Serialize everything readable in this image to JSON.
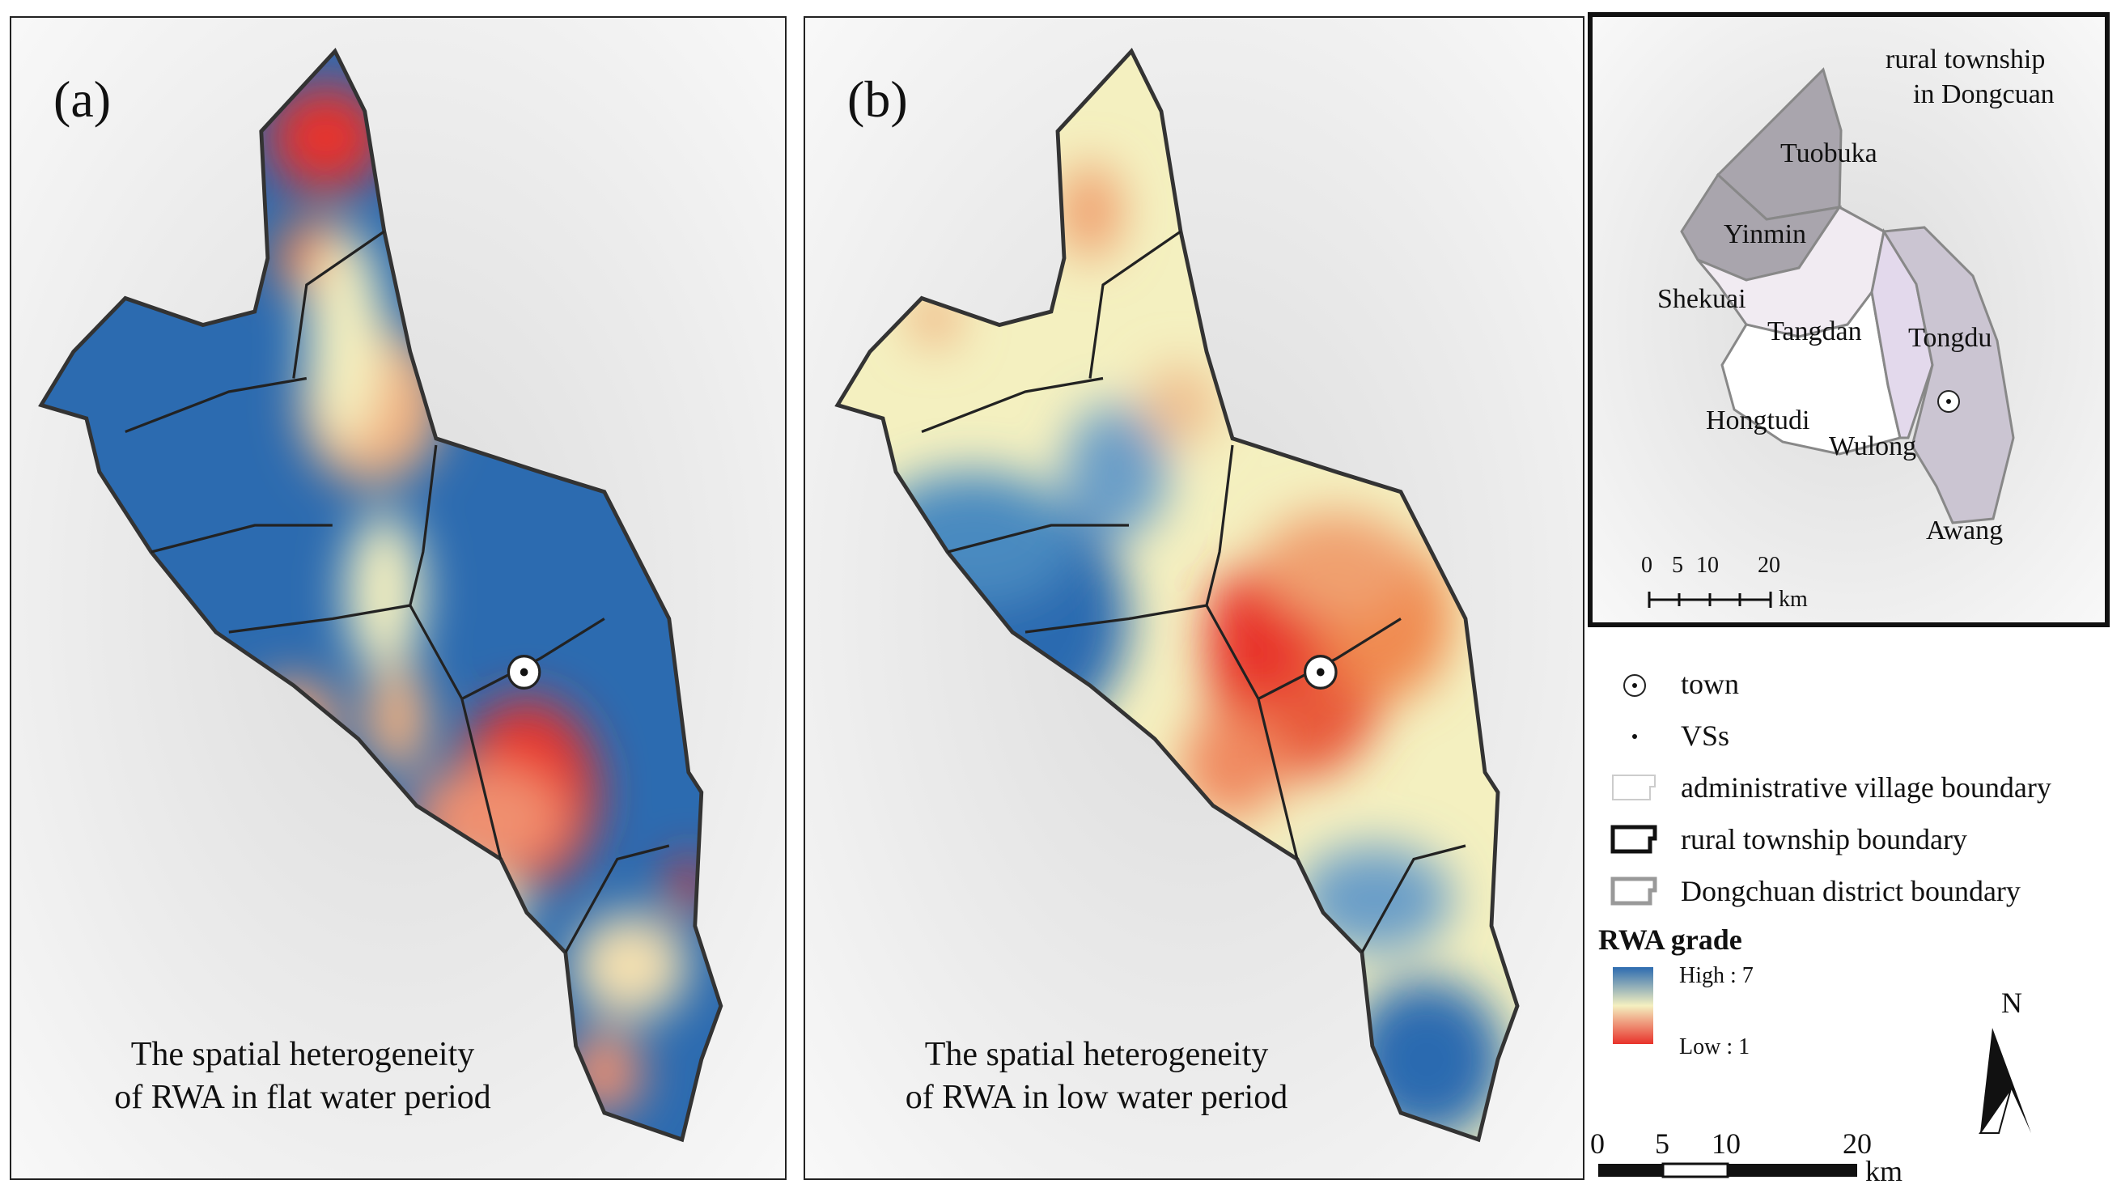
{
  "panel_a": {
    "label": "(a)",
    "caption_line1": "The spatial heterogeneity",
    "caption_line2": "of RWA in flat water period"
  },
  "panel_b": {
    "label": "(b)",
    "caption_line1": "The spatial heterogeneity",
    "caption_line2": "of RWA in low water period"
  },
  "inset": {
    "title_line1": "rural township",
    "title_line2": "in Dongcuan",
    "townships": [
      "Tuobuka",
      "Yinmin",
      "Shekuai",
      "Tangdan",
      "Tongdu",
      "Hongtudi",
      "Wulong",
      "Awang"
    ],
    "scale_ticks": [
      "0",
      "5",
      "10",
      "20"
    ],
    "scale_unit": "km"
  },
  "legend": {
    "items": [
      {
        "symbol": "town-icon",
        "label": "town"
      },
      {
        "symbol": "dot-icon",
        "label": "VSs"
      },
      {
        "symbol": "village-boundary-icon",
        "label": "administrative village boundary"
      },
      {
        "symbol": "township-boundary-icon",
        "label": "rural township boundary"
      },
      {
        "symbol": "district-boundary-icon",
        "label": "Dongchuan district boundary"
      }
    ],
    "rwa_title": "RWA grade",
    "rwa_high": "High : 7",
    "rwa_low": "Low : 1",
    "colors": {
      "high": "#2c6bb0",
      "mid": "#f4f0c0",
      "low": "#e8322a"
    }
  },
  "north": {
    "label": "N"
  },
  "scalebar": {
    "ticks": [
      "0",
      "5",
      "10",
      "20"
    ],
    "unit": "km"
  }
}
